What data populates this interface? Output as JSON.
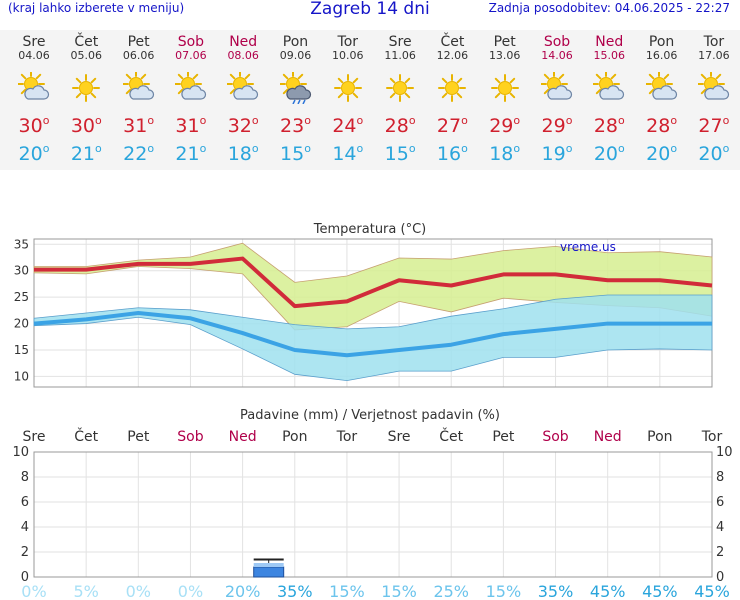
{
  "header": {
    "note": "(kraj lahko izberete v meniju)",
    "title": "Zagreb 14 dni",
    "updated": "Zadnja posodobitev: 04.06.2025 - 22:27"
  },
  "days": [
    {
      "name": "Sre",
      "date": "04.06",
      "weekend": false,
      "icon": "sun-cloud-icon",
      "tmax": "30",
      "tmin": "20"
    },
    {
      "name": "Čet",
      "date": "05.06",
      "weekend": false,
      "icon": "sun-icon",
      "tmax": "30",
      "tmin": "21"
    },
    {
      "name": "Pet",
      "date": "06.06",
      "weekend": false,
      "icon": "sun-cloud-icon",
      "tmax": "31",
      "tmin": "22"
    },
    {
      "name": "Sob",
      "date": "07.06",
      "weekend": true,
      "icon": "sun-cloud-icon",
      "tmax": "31",
      "tmin": "21"
    },
    {
      "name": "Ned",
      "date": "08.06",
      "weekend": true,
      "icon": "sun-cloud-icon",
      "tmax": "32",
      "tmin": "18"
    },
    {
      "name": "Pon",
      "date": "09.06",
      "weekend": false,
      "icon": "sun-cloud-rain-icon",
      "tmax": "23",
      "tmin": "15"
    },
    {
      "name": "Tor",
      "date": "10.06",
      "weekend": false,
      "icon": "sun-icon",
      "tmax": "24",
      "tmin": "14"
    },
    {
      "name": "Sre",
      "date": "11.06",
      "weekend": false,
      "icon": "sun-icon",
      "tmax": "28",
      "tmin": "15"
    },
    {
      "name": "Čet",
      "date": "12.06",
      "weekend": false,
      "icon": "sun-icon",
      "tmax": "27",
      "tmin": "16"
    },
    {
      "name": "Pet",
      "date": "13.06",
      "weekend": false,
      "icon": "sun-icon",
      "tmax": "29",
      "tmin": "18"
    },
    {
      "name": "Sob",
      "date": "14.06",
      "weekend": true,
      "icon": "sun-cloud-icon",
      "tmax": "29",
      "tmin": "19"
    },
    {
      "name": "Ned",
      "date": "15.06",
      "weekend": true,
      "icon": "sun-cloud-icon",
      "tmax": "28",
      "tmin": "20"
    },
    {
      "name": "Pon",
      "date": "16.06",
      "weekend": false,
      "icon": "sun-cloud-icon",
      "tmax": "28",
      "tmin": "20"
    },
    {
      "name": "Tor",
      "date": "17.06",
      "weekend": false,
      "icon": "sun-cloud-icon",
      "tmax": "27",
      "tmin": "20"
    }
  ],
  "chart_data": [
    {
      "type": "line",
      "title": "Temperatura (°C)",
      "watermark": "vreme.us",
      "x": [
        "04.06",
        "05.06",
        "06.06",
        "07.06",
        "08.06",
        "09.06",
        "10.06",
        "11.06",
        "12.06",
        "13.06",
        "14.06",
        "15.06",
        "16.06",
        "17.06"
      ],
      "ylim": [
        8,
        36
      ],
      "yticks": [
        10,
        15,
        20,
        25,
        30,
        35
      ],
      "grid": true,
      "series": [
        {
          "role": "max-line",
          "color": "#d12b3a",
          "values": [
            30.2,
            30.2,
            31.3,
            31.3,
            32.3,
            23.3,
            24.2,
            28.2,
            27.2,
            29.3,
            29.3,
            28.2,
            28.2,
            27.2
          ]
        },
        {
          "role": "max-band-upper",
          "color": "#d6ef90",
          "values": [
            30.8,
            30.8,
            32.0,
            32.6,
            35.2,
            27.8,
            29.0,
            32.4,
            32.2,
            33.8,
            34.6,
            33.4,
            33.6,
            32.6
          ]
        },
        {
          "role": "max-band-lower",
          "color": "#d6ef90",
          "values": [
            29.6,
            29.4,
            30.8,
            30.4,
            29.4,
            18.8,
            19.4,
            24.2,
            22.2,
            24.8,
            24.0,
            23.4,
            23.0,
            21.4
          ]
        },
        {
          "role": "min-line",
          "color": "#3ba3e5",
          "values": [
            20.0,
            20.8,
            22.0,
            21.0,
            18.2,
            15.0,
            14.0,
            15.0,
            16.0,
            18.0,
            19.0,
            20.0,
            20.0,
            20.0
          ]
        },
        {
          "role": "min-band-upper",
          "color": "#9fe0ee",
          "values": [
            21.0,
            22.0,
            23.0,
            22.6,
            21.2,
            19.8,
            19.0,
            19.4,
            21.4,
            22.8,
            24.6,
            25.4,
            25.4,
            25.4
          ]
        },
        {
          "role": "min-band-lower",
          "color": "#9fe0ee",
          "values": [
            19.6,
            20.0,
            21.2,
            19.8,
            15.2,
            10.4,
            9.2,
            11.0,
            11.0,
            13.6,
            13.6,
            15.0,
            15.2,
            15.0
          ]
        }
      ]
    },
    {
      "type": "bar",
      "title": "Padavine (mm) / Verjetnost padavin (%)",
      "categories": [
        "Sre",
        "Čet",
        "Pet",
        "Sob",
        "Ned",
        "Pon",
        "Tor",
        "Sre",
        "Čet",
        "Pet",
        "Sob",
        "Ned",
        "Pon",
        "Tor"
      ],
      "weekend": [
        false,
        false,
        false,
        true,
        true,
        false,
        false,
        false,
        false,
        false,
        true,
        true,
        false,
        false
      ],
      "ylim": [
        0,
        10
      ],
      "yticks": [
        0,
        2,
        4,
        6,
        8,
        10
      ],
      "grid": true,
      "values": [
        0,
        0,
        0,
        0,
        0,
        0.8,
        0,
        0,
        0,
        0,
        0,
        0,
        0,
        0
      ],
      "error_high": [
        0,
        0,
        0,
        0,
        0,
        1.4,
        0,
        0,
        0,
        0,
        0,
        0,
        0,
        0
      ],
      "probabilities": [
        "0%",
        "5%",
        "0%",
        "0%",
        "20%",
        "35%",
        "15%",
        "15%",
        "25%",
        "15%",
        "35%",
        "45%",
        "45%",
        "45%"
      ],
      "probability_values": [
        0,
        5,
        0,
        0,
        20,
        35,
        15,
        15,
        25,
        15,
        35,
        45,
        45,
        45
      ]
    }
  ],
  "colors": {
    "link": "#1515c8",
    "weekend": "#b0004a",
    "max": "#d12b3a",
    "min": "#2aa5dc",
    "bar": "#3d85e0"
  }
}
